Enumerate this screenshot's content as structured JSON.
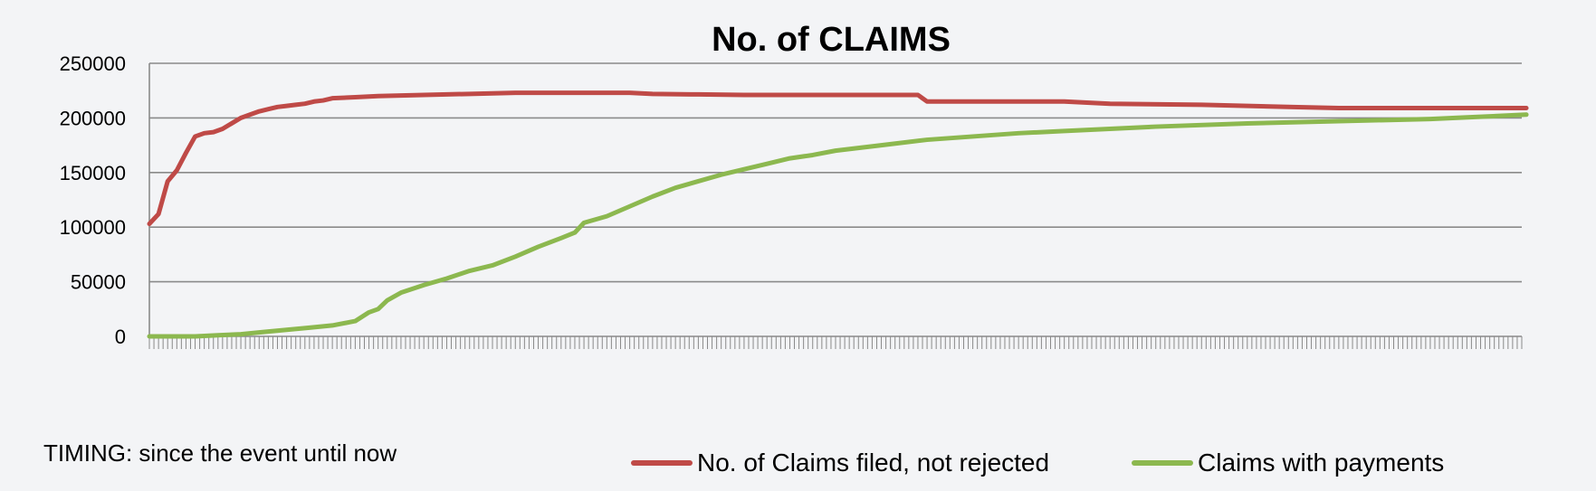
{
  "chart_data": {
    "type": "line",
    "title": "No. of CLAIMS",
    "xlabel": "",
    "ylabel": "",
    "ylim": [
      0,
      250000
    ],
    "yticks": [
      "0",
      "50000",
      "100000",
      "150000",
      "200000",
      "250000"
    ],
    "x_ticks_labeled": false,
    "grid": "horizontal",
    "legend_position": "bottom",
    "note": "TIMING: since the event until now",
    "x_count": 301,
    "series": [
      {
        "name": "No. of Claims filed, not rejected",
        "color": "#bf4a47",
        "points": [
          [
            0,
            103000
          ],
          [
            2,
            112000
          ],
          [
            4,
            142000
          ],
          [
            6,
            152000
          ],
          [
            8,
            168000
          ],
          [
            10,
            183000
          ],
          [
            12,
            186000
          ],
          [
            14,
            187000
          ],
          [
            16,
            190000
          ],
          [
            18,
            195000
          ],
          [
            20,
            200000
          ],
          [
            22,
            203000
          ],
          [
            24,
            206000
          ],
          [
            26,
            208000
          ],
          [
            28,
            210000
          ],
          [
            30,
            211000
          ],
          [
            32,
            212000
          ],
          [
            34,
            213000
          ],
          [
            36,
            215000
          ],
          [
            38,
            216000
          ],
          [
            40,
            218000
          ],
          [
            45,
            219000
          ],
          [
            50,
            220000
          ],
          [
            60,
            221000
          ],
          [
            70,
            222000
          ],
          [
            80,
            223000
          ],
          [
            100,
            223000
          ],
          [
            105,
            223000
          ],
          [
            110,
            222000
          ],
          [
            120,
            221500
          ],
          [
            130,
            221000
          ],
          [
            140,
            221000
          ],
          [
            160,
            221000
          ],
          [
            168,
            221000
          ],
          [
            170,
            215000
          ],
          [
            180,
            215000
          ],
          [
            200,
            215000
          ],
          [
            210,
            213000
          ],
          [
            230,
            212000
          ],
          [
            250,
            210000
          ],
          [
            260,
            209000
          ],
          [
            301,
            209000
          ]
        ]
      },
      {
        "name": "Claims with payments",
        "color": "#8cb84f",
        "points": [
          [
            0,
            0
          ],
          [
            10,
            0
          ],
          [
            15,
            1000
          ],
          [
            20,
            2000
          ],
          [
            25,
            4000
          ],
          [
            30,
            6000
          ],
          [
            35,
            8000
          ],
          [
            40,
            10000
          ],
          [
            45,
            14000
          ],
          [
            48,
            22000
          ],
          [
            50,
            25000
          ],
          [
            52,
            33000
          ],
          [
            55,
            40000
          ],
          [
            60,
            47000
          ],
          [
            65,
            53000
          ],
          [
            70,
            60000
          ],
          [
            75,
            65000
          ],
          [
            80,
            73000
          ],
          [
            85,
            82000
          ],
          [
            90,
            90000
          ],
          [
            93,
            95000
          ],
          [
            95,
            104000
          ],
          [
            100,
            110000
          ],
          [
            105,
            119000
          ],
          [
            110,
            128000
          ],
          [
            115,
            136000
          ],
          [
            120,
            142000
          ],
          [
            125,
            148000
          ],
          [
            130,
            153000
          ],
          [
            135,
            158000
          ],
          [
            140,
            163000
          ],
          [
            145,
            166000
          ],
          [
            150,
            170000
          ],
          [
            160,
            175000
          ],
          [
            170,
            180000
          ],
          [
            180,
            183000
          ],
          [
            190,
            186000
          ],
          [
            200,
            188000
          ],
          [
            220,
            192000
          ],
          [
            240,
            195000
          ],
          [
            260,
            197000
          ],
          [
            280,
            199000
          ],
          [
            301,
            203000
          ]
        ]
      }
    ]
  }
}
